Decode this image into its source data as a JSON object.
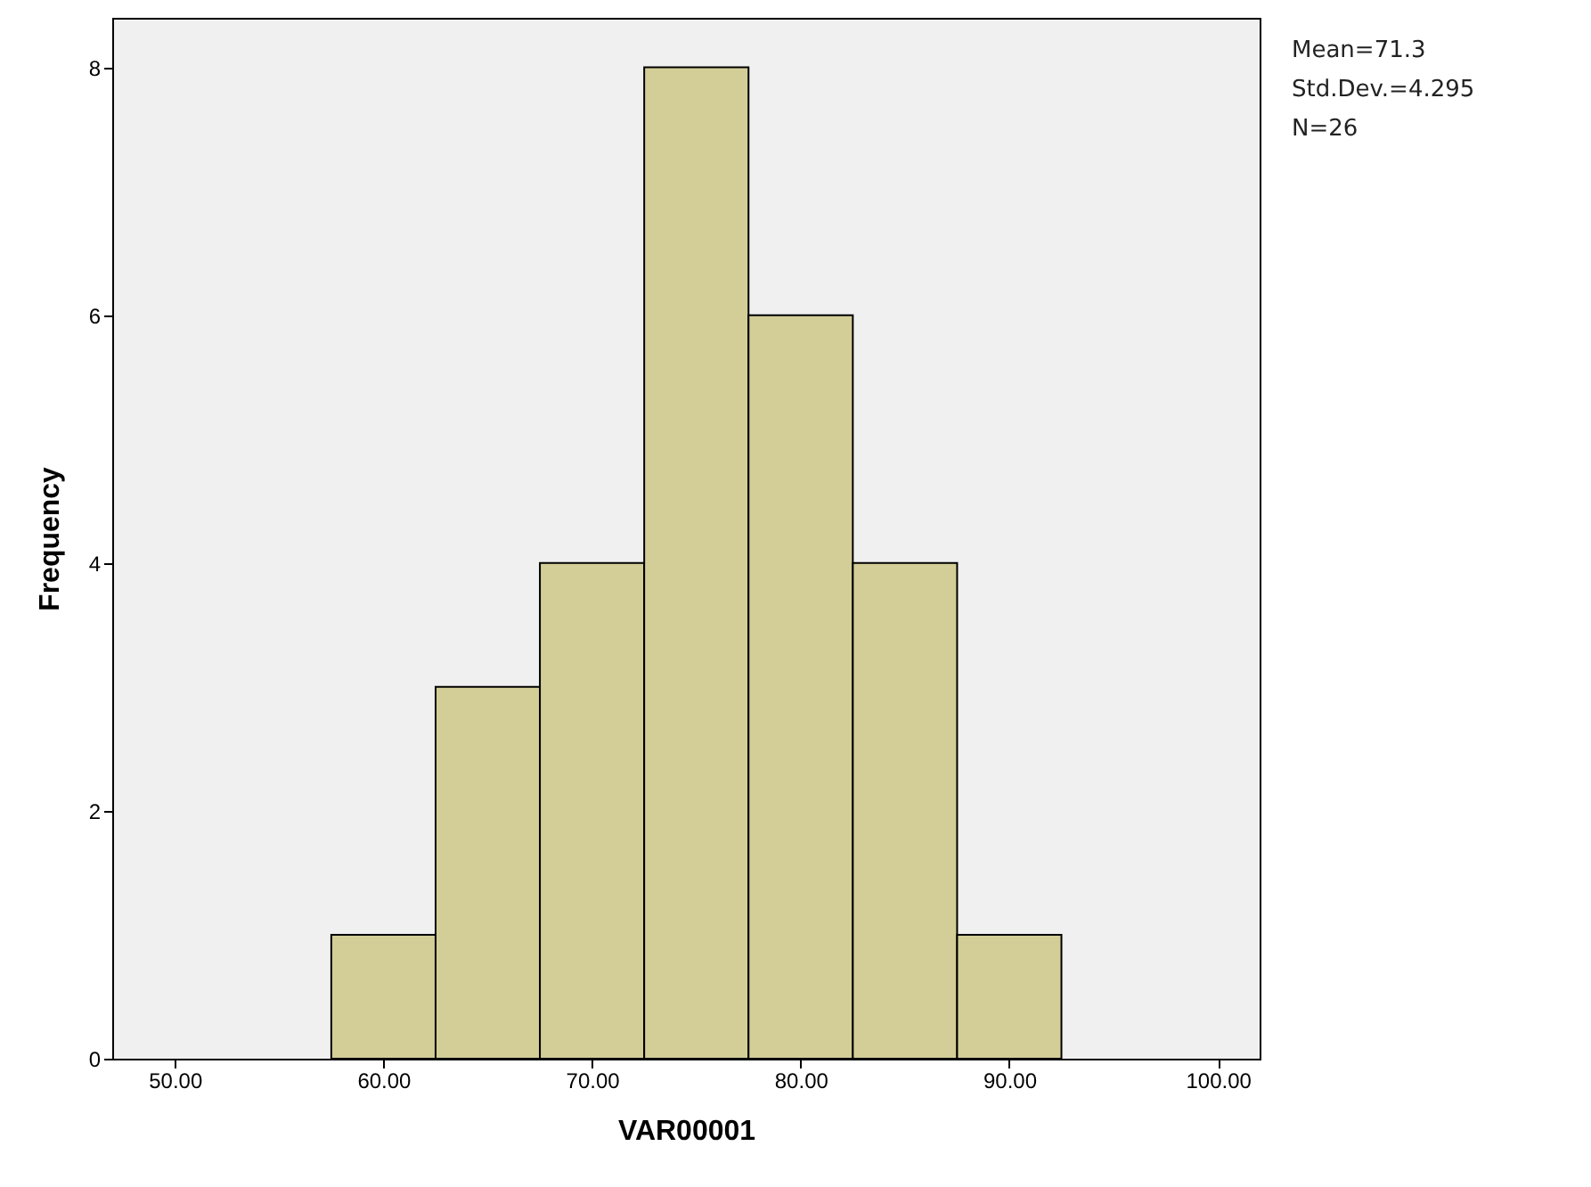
{
  "chart_data": {
    "type": "histogram",
    "xlabel": "VAR00001",
    "ylabel": "Frequency",
    "bins": [
      57.5,
      62.5,
      67.5,
      72.5,
      77.5,
      82.5,
      87.5,
      92.5
    ],
    "values": [
      1,
      3,
      4,
      8,
      6,
      4,
      1
    ],
    "color": "#d3ce97",
    "xlim": [
      47,
      102
    ],
    "ylim": [
      0,
      8.4
    ],
    "xticks": [
      {
        "value": 50,
        "label": "50.00"
      },
      {
        "value": 60,
        "label": "60.00"
      },
      {
        "value": 70,
        "label": "70.00"
      },
      {
        "value": 80,
        "label": "80.00"
      },
      {
        "value": 90,
        "label": "90.00"
      },
      {
        "value": 100,
        "label": "100.00"
      }
    ],
    "yticks": [
      0,
      2,
      4,
      6,
      8
    ],
    "annotations": [
      "Mean=71.3",
      "Std.Dev.=4.295",
      "N=26"
    ]
  }
}
